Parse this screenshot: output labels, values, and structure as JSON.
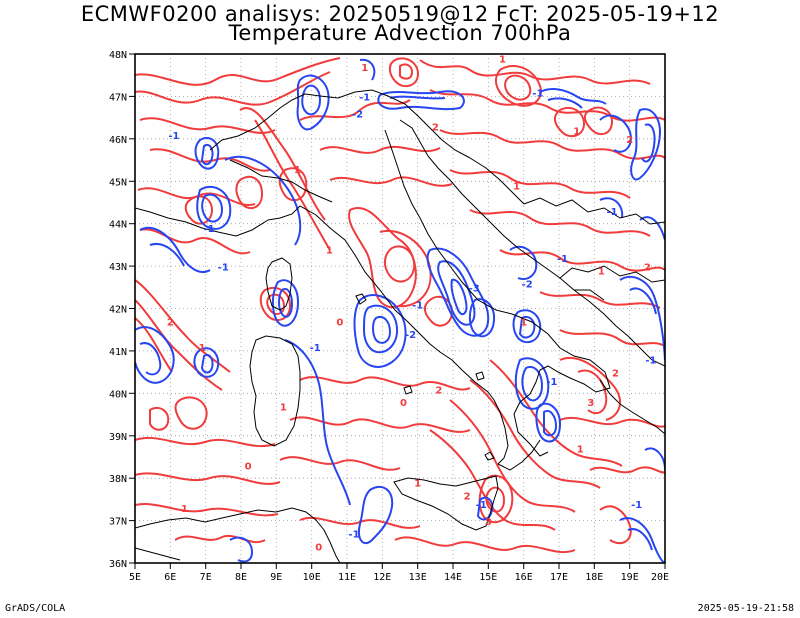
{
  "title_line1": "ECMWF0200 analisys: 20250519@12 FcT: 2025-05-19+12",
  "title_line2": "Temperature Advection 700hPa",
  "lat_labels": [
    "48N",
    "47N",
    "46N",
    "45N",
    "44N",
    "43N",
    "42N",
    "41N",
    "40N",
    "39N",
    "38N",
    "37N",
    "36N"
  ],
  "lon_labels": [
    "5E",
    "6E",
    "7E",
    "8E",
    "9E",
    "10E",
    "11E",
    "12E",
    "13E",
    "14E",
    "15E",
    "16E",
    "17E",
    "18E",
    "19E",
    "20E"
  ],
  "footer_left": "GrADS/COLA",
  "footer_right": "2025-05-19-21:58",
  "colors": {
    "warm": "#f03c3c",
    "cold": "#2846f0",
    "coast": "#000000",
    "grid": "#999999"
  },
  "contour_labels": [
    {
      "text": "-1",
      "lon": 11.5,
      "lat": 46.9,
      "color": "cold"
    },
    {
      "text": "-2",
      "lon": 11.3,
      "lat": 46.5,
      "color": "cold"
    },
    {
      "text": "1",
      "lon": 11.5,
      "lat": 47.6,
      "color": "warm"
    },
    {
      "text": "1",
      "lon": 15.4,
      "lat": 47.8,
      "color": "warm"
    },
    {
      "text": "2",
      "lon": 13.5,
      "lat": 46.2,
      "color": "warm"
    },
    {
      "text": "-1",
      "lon": 6.1,
      "lat": 46.0,
      "color": "cold"
    },
    {
      "text": "1",
      "lon": 9.6,
      "lat": 45.2,
      "color": "warm"
    },
    {
      "text": "-1",
      "lon": 7.1,
      "lat": 43.8,
      "color": "cold"
    },
    {
      "text": "-1",
      "lon": 7.5,
      "lat": 42.9,
      "color": "cold"
    },
    {
      "text": "1",
      "lon": 10.5,
      "lat": 43.3,
      "color": "warm"
    },
    {
      "text": "-1",
      "lon": 10.1,
      "lat": 41.0,
      "color": "cold"
    },
    {
      "text": "0",
      "lon": 10.8,
      "lat": 41.6,
      "color": "warm"
    },
    {
      "text": "-2",
      "lon": 12.8,
      "lat": 41.3,
      "color": "cold"
    },
    {
      "text": "-1",
      "lon": 13.0,
      "lat": 42.0,
      "color": "cold"
    },
    {
      "text": "2",
      "lon": 13.6,
      "lat": 40.0,
      "color": "warm"
    },
    {
      "text": "0",
      "lon": 12.6,
      "lat": 39.7,
      "color": "warm"
    },
    {
      "text": "1",
      "lon": 9.2,
      "lat": 39.6,
      "color": "warm"
    },
    {
      "text": "-1",
      "lon": 11.2,
      "lat": 36.6,
      "color": "cold"
    },
    {
      "text": "0",
      "lon": 10.2,
      "lat": 36.3,
      "color": "warm"
    },
    {
      "text": "1",
      "lon": 13.0,
      "lat": 37.8,
      "color": "warm"
    },
    {
      "text": "2",
      "lon": 14.4,
      "lat": 37.5,
      "color": "warm"
    },
    {
      "text": "3",
      "lon": 15.0,
      "lat": 36.9,
      "color": "warm"
    },
    {
      "text": "-1",
      "lon": 14.8,
      "lat": 37.3,
      "color": "cold"
    },
    {
      "text": "1",
      "lon": 17.6,
      "lat": 38.6,
      "color": "warm"
    },
    {
      "text": "-1",
      "lon": 16.8,
      "lat": 40.2,
      "color": "cold"
    },
    {
      "text": "3",
      "lon": 17.9,
      "lat": 39.7,
      "color": "warm"
    },
    {
      "text": "2",
      "lon": 18.6,
      "lat": 40.4,
      "color": "warm"
    },
    {
      "text": "1",
      "lon": 16.0,
      "lat": 41.6,
      "color": "warm"
    },
    {
      "text": "-3",
      "lon": 14.6,
      "lat": 42.4,
      "color": "cold"
    },
    {
      "text": "-2",
      "lon": 16.1,
      "lat": 42.5,
      "color": "cold"
    },
    {
      "text": "-1",
      "lon": 17.1,
      "lat": 43.1,
      "color": "cold"
    },
    {
      "text": "1",
      "lon": 18.2,
      "lat": 42.8,
      "color": "warm"
    },
    {
      "text": "2",
      "lon": 19.5,
      "lat": 42.9,
      "color": "warm"
    },
    {
      "text": "-1",
      "lon": 18.5,
      "lat": 44.2,
      "color": "cold"
    },
    {
      "text": "1",
      "lon": 15.8,
      "lat": 44.8,
      "color": "warm"
    },
    {
      "text": "1",
      "lon": 17.5,
      "lat": 46.1,
      "color": "warm"
    },
    {
      "text": "-1",
      "lon": 16.4,
      "lat": 47.0,
      "color": "cold"
    },
    {
      "text": "2",
      "lon": 19.0,
      "lat": 45.9,
      "color": "warm"
    },
    {
      "text": "-1",
      "lon": 19.6,
      "lat": 40.7,
      "color": "cold"
    },
    {
      "text": "1",
      "lon": 6.9,
      "lat": 41.0,
      "color": "warm"
    },
    {
      "text": "2",
      "lon": 6.0,
      "lat": 41.6,
      "color": "warm"
    },
    {
      "text": "0",
      "lon": 8.2,
      "lat": 38.2,
      "color": "warm"
    },
    {
      "text": "1",
      "lon": 6.4,
      "lat": 37.2,
      "color": "warm"
    },
    {
      "text": "-1",
      "lon": 19.2,
      "lat": 37.3,
      "color": "cold"
    }
  ]
}
